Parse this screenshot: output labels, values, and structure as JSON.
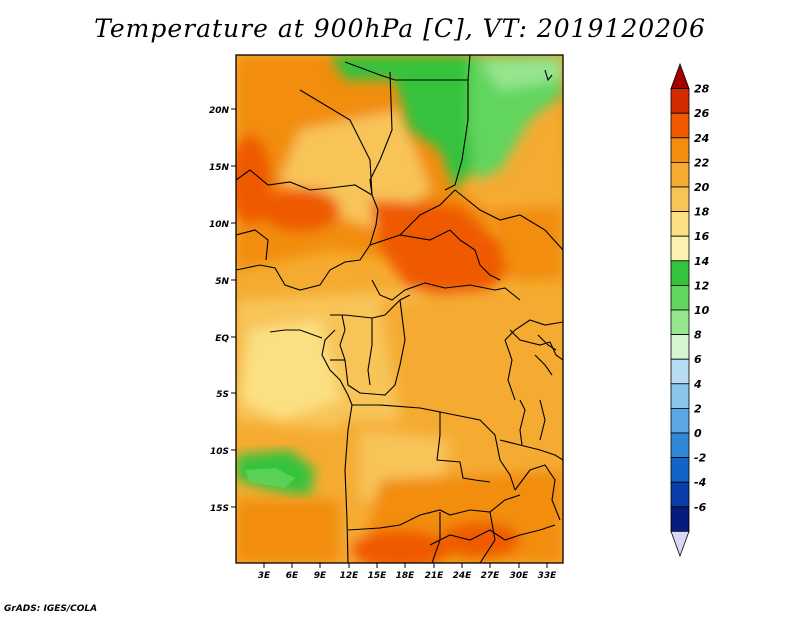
{
  "title": "Temperature at 900hPa [C], VT: 2019120206",
  "credit": "GrADS: IGES/COLA",
  "map": {
    "lat_ticks": [
      "20N",
      "15N",
      "10N",
      "5N",
      "EQ",
      "5S",
      "10S",
      "15S"
    ],
    "lon_ticks": [
      "3E",
      "6E",
      "9E",
      "12E",
      "15E",
      "18E",
      "21E",
      "24E",
      "27E",
      "30E",
      "33E"
    ]
  },
  "colorbar": {
    "labels": [
      "28",
      "26",
      "24",
      "22",
      "20",
      "18",
      "16",
      "14",
      "12",
      "10",
      "8",
      "6",
      "4",
      "2",
      "0",
      "-2",
      "-4",
      "-6"
    ],
    "colors": [
      "#a50000",
      "#d42a00",
      "#ef5a00",
      "#f28d10",
      "#f5ab30",
      "#f8c458",
      "#fbe082",
      "#fdf3b0",
      "#35c23c",
      "#62d55e",
      "#96e58f",
      "#d4f5d0",
      "#b6dcf2",
      "#8ac5ec",
      "#5da8e4",
      "#3288d8",
      "#1463c6",
      "#0a3da8",
      "#061c7e",
      "#d8d8f5"
    ]
  }
}
